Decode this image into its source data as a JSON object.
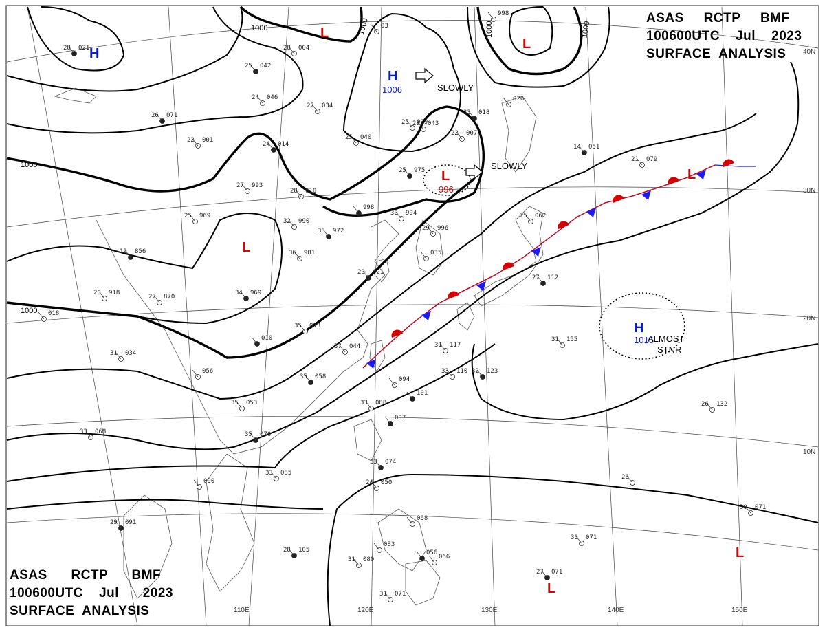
{
  "header_top": {
    "line1": "ASAS     RCTP     BMF",
    "line2": "100600UTC    Jul    2023",
    "line3": "SURFACE  ANALYSIS"
  },
  "header_bottom": {
    "line1": "ASAS      RCTP      BMF",
    "line2": "100600UTC    Jul      2023",
    "line3": "SURFACE  ANALYSIS"
  },
  "isobar_labels": [
    "1000",
    "1000",
    "1000",
    "1000",
    "1000"
  ],
  "isobar_labels_rot": [
    "1000",
    "1000"
  ],
  "grid_labels": {
    "lon": [
      "110E",
      "120E",
      "130E",
      "140E",
      "150E"
    ],
    "lat": [
      "30N",
      "20N",
      "10N",
      "40N"
    ]
  },
  "pressure_centers": [
    {
      "letter": "H",
      "color": "#0a1fd1",
      "value": ""
    },
    {
      "letter": "H",
      "color": "#0a1fd1",
      "value": "1006"
    },
    {
      "letter": "H",
      "color": "#0a1fd1",
      "value": "1016"
    },
    {
      "letter": "L",
      "color": "#e00000",
      "value": ""
    },
    {
      "letter": "L",
      "color": "#e00000",
      "value": ""
    },
    {
      "letter": "L",
      "color": "#e00000",
      "value": "996"
    },
    {
      "letter": "L",
      "color": "#e00000",
      "value": ""
    },
    {
      "letter": "L",
      "color": "#e00000",
      "value": ""
    },
    {
      "letter": "L",
      "color": "#e00000",
      "value": ""
    },
    {
      "letter": "L",
      "color": "#e00000",
      "value": ""
    }
  ],
  "movement_labels": [
    "SLOWLY",
    "SLOWLY",
    "ALMOST",
    "STNR"
  ],
  "stations": [
    {
      "t": "28",
      "p": "021"
    },
    {
      "t": "28",
      "p": "004"
    },
    {
      "t": "",
      "p": "03"
    },
    {
      "t": "25",
      "p": "042"
    },
    {
      "t": "24",
      "p": "046"
    },
    {
      "t": "27",
      "p": "034"
    },
    {
      "t": "26",
      "p": "071"
    },
    {
      "t": "28",
      "p": "043"
    },
    {
      "t": "22",
      "p": "001"
    },
    {
      "t": "24",
      "p": "014"
    },
    {
      "t": "25",
      "p": "040"
    },
    {
      "t": "25",
      "p": "039"
    },
    {
      "t": "23",
      "p": "018"
    },
    {
      "t": "",
      "p": "026"
    },
    {
      "t": "22",
      "p": "007"
    },
    {
      "t": "25",
      "p": "975"
    },
    {
      "t": "27",
      "p": "993"
    },
    {
      "t": "28",
      "p": "010"
    },
    {
      "t": "",
      "p": "998"
    },
    {
      "t": "25",
      "p": "969"
    },
    {
      "t": "32",
      "p": "990"
    },
    {
      "t": "38",
      "p": "972"
    },
    {
      "t": "30",
      "p": "994"
    },
    {
      "t": "29",
      "p": "996"
    },
    {
      "t": "19",
      "p": "856"
    },
    {
      "t": "36",
      "p": "981"
    },
    {
      "t": "",
      "p": "035"
    },
    {
      "t": "29",
      "p": "021"
    },
    {
      "t": "20",
      "p": "918"
    },
    {
      "t": "27",
      "p": "870"
    },
    {
      "t": "34",
      "p": "969"
    },
    {
      "t": "",
      "p": "018"
    },
    {
      "t": "25",
      "p": "062"
    },
    {
      "t": "27",
      "p": "112"
    },
    {
      "t": "35",
      "p": "013"
    },
    {
      "t": "37",
      "p": "044"
    },
    {
      "t": "",
      "p": "010"
    },
    {
      "t": "31",
      "p": "034"
    },
    {
      "t": "",
      "p": "056"
    },
    {
      "t": "35",
      "p": "058"
    },
    {
      "t": "31",
      "p": "117"
    },
    {
      "t": "33",
      "p": "110"
    },
    {
      "t": "32",
      "p": "123"
    },
    {
      "t": "31",
      "p": "155"
    },
    {
      "t": "",
      "p": "094"
    },
    {
      "t": "",
      "p": "101"
    },
    {
      "t": "35",
      "p": "053"
    },
    {
      "t": "33",
      "p": "088"
    },
    {
      "t": "",
      "p": "097"
    },
    {
      "t": "26",
      "p": "132"
    },
    {
      "t": "33",
      "p": "068"
    },
    {
      "t": "35",
      "p": "070"
    },
    {
      "t": "33",
      "p": "085"
    },
    {
      "t": "",
      "p": "090"
    },
    {
      "t": "33",
      "p": "074"
    },
    {
      "t": "24",
      "p": "050"
    },
    {
      "t": "26",
      "p": ""
    },
    {
      "t": "29",
      "p": "091"
    },
    {
      "t": "",
      "p": "068"
    },
    {
      "t": "30",
      "p": "071"
    },
    {
      "t": "28",
      "p": "105"
    },
    {
      "t": "31",
      "p": "080"
    },
    {
      "t": "",
      "p": "083"
    },
    {
      "t": "",
      "p": "056"
    },
    {
      "t": "",
      "p": "066"
    },
    {
      "t": "30",
      "p": "071"
    },
    {
      "t": "27",
      "p": "071"
    },
    {
      "t": "31",
      "p": "071"
    },
    {
      "t": "21",
      "p": "079"
    },
    {
      "t": "14",
      "p": "051"
    },
    {
      "t": "",
      "p": "998"
    }
  ],
  "colors": {
    "high": "#0a1fd1",
    "low": "#e00000",
    "cold_front": "#1a1aff",
    "warm_front": "#d60000"
  }
}
